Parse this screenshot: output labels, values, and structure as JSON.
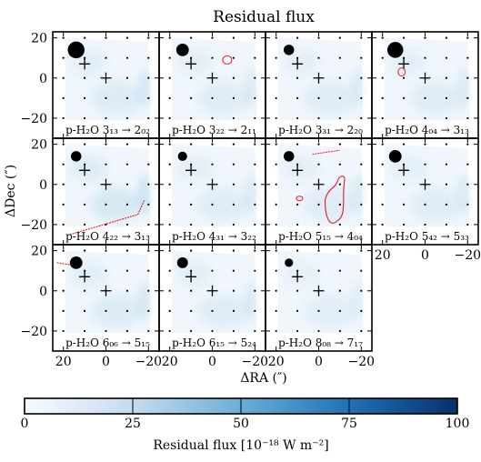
{
  "chart_data": {
    "type": "heatmap",
    "title": "Residual flux",
    "xlabel": "ΔRA (″)",
    "ylabel": "ΔDec (″)",
    "xlim": [
      25,
      -25
    ],
    "ylim": [
      -30,
      23
    ],
    "xticks": [
      20,
      0,
      -20
    ],
    "yticks": [
      20,
      0,
      -20
    ],
    "colorbar": {
      "label": "Residual flux [10⁻¹⁸ W m⁻²]",
      "min": 0,
      "max": 100,
      "ticks": [
        0,
        25,
        50,
        75,
        100
      ],
      "colors": [
        "#f7fbff",
        "#c6dbef",
        "#6baed6",
        "#2171b5",
        "#08306b"
      ]
    },
    "panels": [
      {
        "label": "p-H₂O 3₁₃ → 2₀₂",
        "beam": 4.0,
        "level": 0.12
      },
      {
        "label": "p-H₂O 3₂₂ → 2₁₁",
        "beam": 3.0,
        "level": 0.1
      },
      {
        "label": "p-H₂O 3₃₁ → 2₂₀",
        "beam": 2.5,
        "level": 0.1
      },
      {
        "label": "p-H₂O 4₀₄ → 3₁₃",
        "beam": 3.8,
        "level": 0.1
      },
      {
        "label": "p-H₂O 4₂₂ → 3₁₃",
        "beam": 2.5,
        "level": 0.15
      },
      {
        "label": "p-H₂O 4₃₁ → 3₂₂",
        "beam": 2.2,
        "level": 0.1
      },
      {
        "label": "p-H₂O 5₁₅ → 4₀₄",
        "beam": 2.5,
        "level": 0.1
      },
      {
        "label": "p-H₂O 5₄₂ → 5₃₃",
        "beam": 3.0,
        "level": 0.1
      },
      {
        "label": "p-H₂O 6₀₆ → 5₁₅",
        "beam": 3.0,
        "level": 0.12
      },
      {
        "label": "p-H₂O 6₁₅ → 5₂₄",
        "beam": 2.6,
        "level": 0.1
      },
      {
        "label": "p-H₂O 8₀₈ → 7₁₇",
        "beam": 2.0,
        "level": 0.08
      }
    ],
    "crosses": [
      [
        10,
        7
      ],
      [
        0,
        0
      ]
    ]
  }
}
